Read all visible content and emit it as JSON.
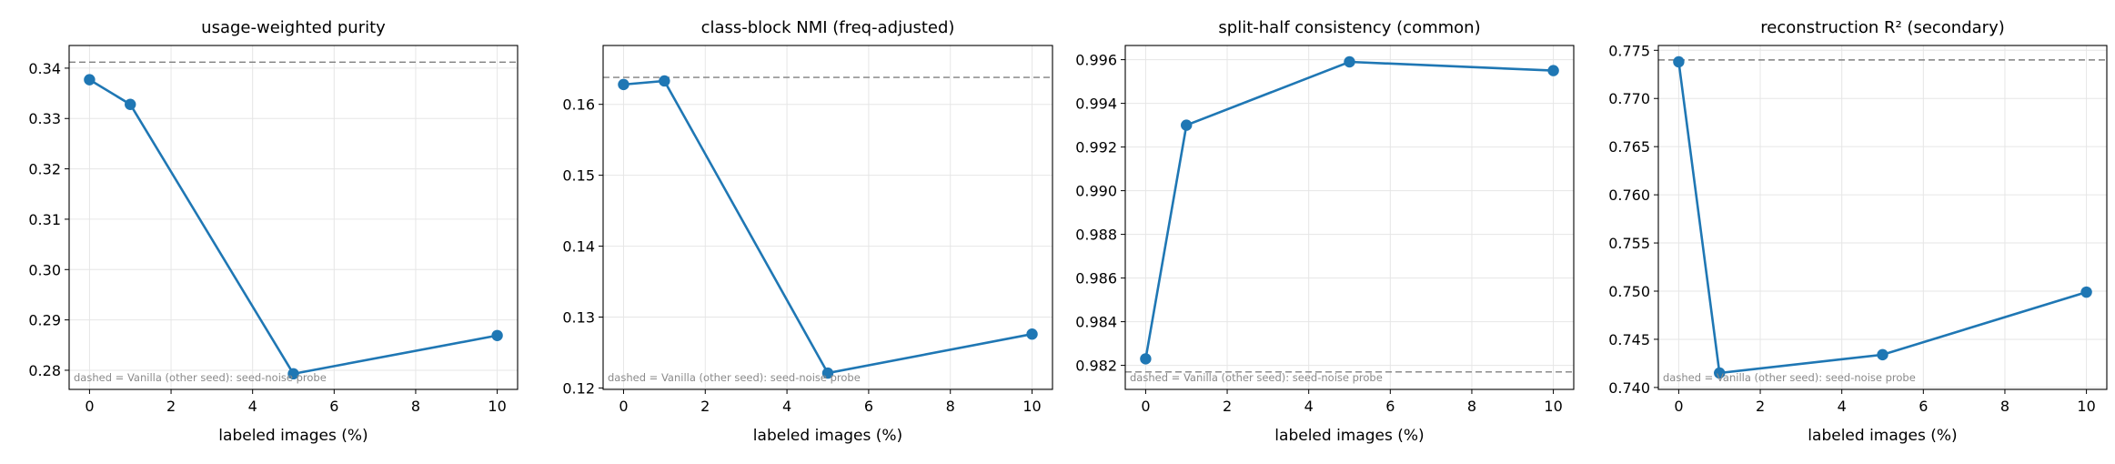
{
  "chart_data": [
    {
      "type": "line",
      "title": "usage-weighted purity",
      "xlabel": "labeled images (%)",
      "ylabel": "",
      "xlim": [
        -0.5,
        10.5
      ],
      "ylim": [
        0.2762,
        0.3445
      ],
      "xticks": [
        0,
        2,
        4,
        6,
        8,
        10
      ],
      "xtick_labels": [
        "0",
        "2",
        "4",
        "6",
        "8",
        "10"
      ],
      "yticks": [
        0.28,
        0.29,
        0.3,
        0.31,
        0.32,
        0.33,
        0.34
      ],
      "ytick_labels": [
        "0.28",
        "0.29",
        "0.30",
        "0.31",
        "0.32",
        "0.33",
        "0.34"
      ],
      "x": [
        0,
        1,
        5,
        10
      ],
      "series": [
        {
          "values": [
            0.3377,
            0.3328,
            0.2793,
            0.2869
          ],
          "color": "#1f77b4"
        }
      ],
      "reference_line": {
        "value": 0.3412,
        "color": "#808080",
        "style": "dashed"
      },
      "annotation": "dashed = Vanilla (other seed): seed-noise probe",
      "grid": true
    },
    {
      "type": "line",
      "title": "class-block NMI (freq-adjusted)",
      "xlabel": "labeled images (%)",
      "ylabel": "",
      "xlim": [
        -0.5,
        10.5
      ],
      "ylim": [
        0.1198,
        0.1683
      ],
      "xticks": [
        0,
        2,
        4,
        6,
        8,
        10
      ],
      "xtick_labels": [
        "0",
        "2",
        "4",
        "6",
        "8",
        "10"
      ],
      "yticks": [
        0.12,
        0.13,
        0.14,
        0.15,
        0.16
      ],
      "ytick_labels": [
        "0.12",
        "0.13",
        "0.14",
        "0.15",
        "0.16"
      ],
      "x": [
        0,
        1,
        5,
        10
      ],
      "series": [
        {
          "values": [
            0.1628,
            0.1633,
            0.1221,
            0.1276
          ],
          "color": "#1f77b4"
        }
      ],
      "reference_line": {
        "value": 0.1638,
        "color": "#808080",
        "style": "dashed"
      },
      "annotation": "dashed = Vanilla (other seed): seed-noise probe",
      "grid": true
    },
    {
      "type": "line",
      "title": "split-half consistency (common)",
      "xlabel": "labeled images (%)",
      "ylabel": "",
      "xlim": [
        -0.5,
        10.5
      ],
      "ylim": [
        0.9809,
        0.99665
      ],
      "xticks": [
        0,
        2,
        4,
        6,
        8,
        10
      ],
      "xtick_labels": [
        "0",
        "2",
        "4",
        "6",
        "8",
        "10"
      ],
      "yticks": [
        0.982,
        0.984,
        0.986,
        0.988,
        0.99,
        0.992,
        0.994,
        0.996
      ],
      "ytick_labels": [
        "0.982",
        "0.984",
        "0.986",
        "0.988",
        "0.990",
        "0.992",
        "0.994",
        "0.996"
      ],
      "x": [
        0,
        1,
        5,
        10
      ],
      "series": [
        {
          "values": [
            0.9823,
            0.993,
            0.9959,
            0.9955
          ],
          "color": "#1f77b4"
        }
      ],
      "reference_line": {
        "value": 0.9817,
        "color": "#808080",
        "style": "dashed"
      },
      "annotation": "dashed = Vanilla (other seed): seed-noise probe",
      "grid": true
    },
    {
      "type": "line",
      "title": "reconstruction R² (secondary)",
      "xlabel": "labeled images (%)",
      "ylabel": "",
      "xlim": [
        -0.5,
        10.5
      ],
      "ylim": [
        0.7398,
        0.7755
      ],
      "xticks": [
        0,
        2,
        4,
        6,
        8,
        10
      ],
      "xtick_labels": [
        "0",
        "2",
        "4",
        "6",
        "8",
        "10"
      ],
      "yticks": [
        0.74,
        0.745,
        0.75,
        0.755,
        0.76,
        0.765,
        0.77,
        0.775
      ],
      "ytick_labels": [
        "0.740",
        "0.745",
        "0.750",
        "0.755",
        "0.760",
        "0.765",
        "0.770",
        "0.775"
      ],
      "x": [
        0,
        1,
        5,
        10
      ],
      "series": [
        {
          "values": [
            0.7738,
            0.7415,
            0.7434,
            0.7499
          ],
          "color": "#1f77b4"
        }
      ],
      "reference_line": {
        "value": 0.774,
        "color": "#808080",
        "style": "dashed"
      },
      "annotation": "dashed = Vanilla (other seed): seed-noise probe",
      "grid": true
    }
  ]
}
